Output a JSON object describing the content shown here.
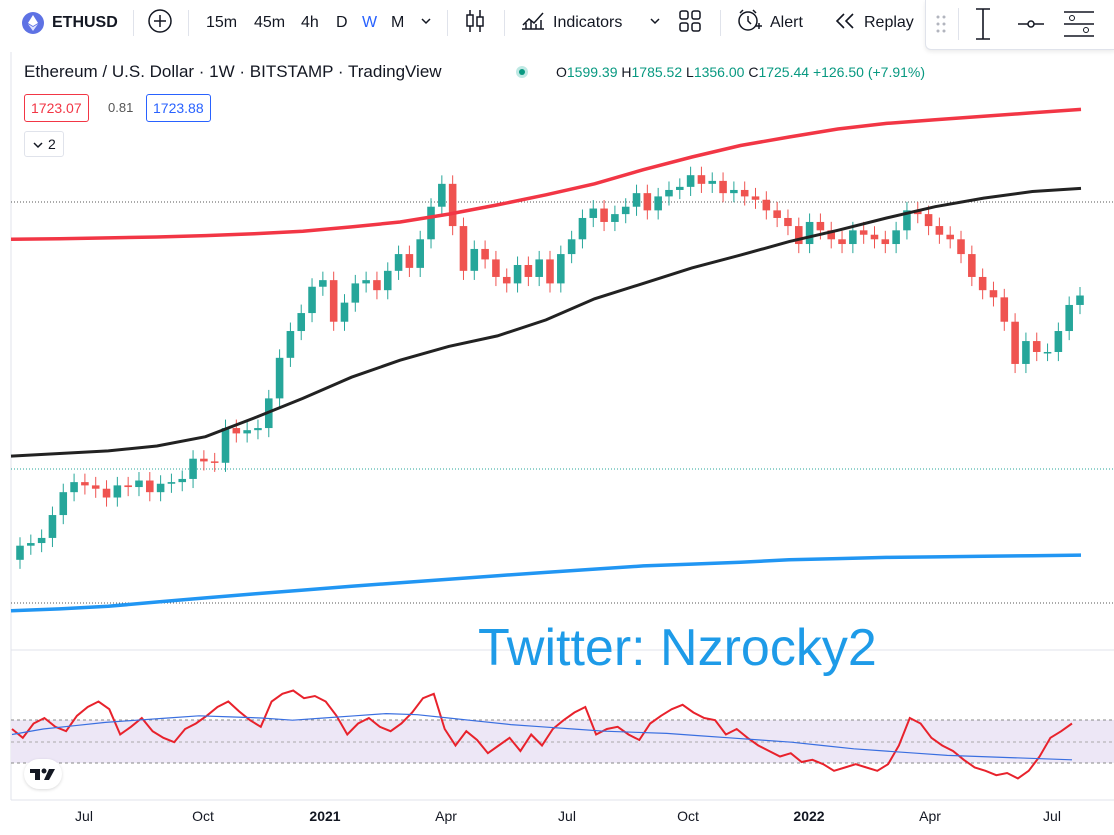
{
  "toolbar": {
    "symbol": "ETHUSD",
    "intervals": [
      "15m",
      "45m",
      "4h",
      "D",
      "W",
      "M"
    ],
    "active_interval": "W",
    "indicators_label": "Indicators",
    "alert_label": "Alert",
    "replay_label": "Replay"
  },
  "legend": {
    "title": "Ethereum / U.S. Dollar · 1W · BITSTAMP · TradingView",
    "open_prefix": "O",
    "open": "1599.39",
    "high_prefix": "H",
    "high": "1785.52",
    "low_prefix": "L",
    "low": "1356.00",
    "close_prefix": "C",
    "close": "1725.44",
    "change": "+126.50 (+7.91%)",
    "bid": "1723.07",
    "spread": "0.81",
    "ask": "1723.88",
    "indicator_count": "2"
  },
  "watermark": "Twitter: Nzrocky2",
  "x_axis": {
    "labels": [
      "Jul",
      "Oct",
      "2021",
      "Apr",
      "Jul",
      "Oct",
      "2022",
      "Apr",
      "Jul"
    ],
    "bold": [
      false,
      false,
      true,
      false,
      false,
      false,
      true,
      false,
      false
    ]
  },
  "colors": {
    "up": "#26a69a",
    "down": "#ef5350",
    "upper_band": "#f23645",
    "ma": "#222222",
    "lower_band": "#2196f3",
    "rsi": "#e8222c",
    "rsi_ma": "#3a6fe0",
    "rsi_band": "#ede7f6",
    "accent": "#2962ff",
    "price_green": "#089981"
  },
  "icons": [
    "ethereum-logo-icon",
    "add-compare-icon",
    "chevron-down-icon",
    "candles-icon",
    "indicators-icon",
    "layout-grid-icon",
    "alert-clock-icon",
    "replay-icon",
    "drag-handle-icon",
    "cursor-tool-icon",
    "horizontal-line-icon",
    "menu-lines-icon",
    "tradingview-logo-icon"
  ],
  "chart_data": [
    {
      "type": "line",
      "title": "Ethereum / U.S. Dollar · 1W · BITSTAMP · TradingView",
      "xlabel": "",
      "ylabel": "",
      "x_ticks": [
        "Jul",
        "Oct",
        "2021",
        "Apr",
        "Jul",
        "Oct",
        "2022",
        "Apr",
        "Jul"
      ],
      "candles": {
        "open": [
          210,
          235,
          240,
          250,
          300,
          360,
          390,
          380,
          370,
          345,
          380,
          375,
          395,
          360,
          385,
          390,
          400,
          470,
          460,
          455,
          600,
          575,
          590,
          600,
          760,
          1050,
          1300,
          1500,
          1850,
          1950,
          1400,
          1630,
          1900,
          1950,
          1800,
          2100,
          2400,
          2150,
          2700,
          3500,
          4200,
          3000,
          2100,
          2500,
          2300,
          2000,
          1900,
          2200,
          2000,
          2300,
          1900,
          2400,
          2700,
          3200,
          3450,
          3100,
          3300,
          3500,
          3900,
          3400,
          3800,
          4000,
          4100,
          4500,
          4200,
          4300,
          3900,
          4000,
          3800,
          3700,
          3400,
          3200,
          3000,
          2600,
          3100,
          2900,
          2700,
          2600,
          2900,
          2800,
          2700,
          2600,
          2900,
          3400,
          3300,
          3000,
          2800,
          2700,
          2400,
          2000,
          1800,
          1700,
          1400,
          1000,
          1200,
          1100,
          1100,
          1300,
          1600
        ],
        "close": [
          235,
          240,
          250,
          300,
          360,
          390,
          380,
          370,
          345,
          380,
          375,
          395,
          360,
          385,
          390,
          400,
          470,
          460,
          455,
          600,
          575,
          590,
          600,
          760,
          1050,
          1300,
          1500,
          1850,
          1950,
          1400,
          1630,
          1900,
          1950,
          1800,
          2100,
          2400,
          2150,
          2700,
          3500,
          4200,
          3000,
          2100,
          2500,
          2300,
          2000,
          1900,
          2200,
          2000,
          2300,
          1900,
          2400,
          2700,
          3200,
          3450,
          3100,
          3300,
          3500,
          3900,
          3400,
          3800,
          4000,
          4100,
          4500,
          4200,
          4300,
          3900,
          4000,
          3800,
          3700,
          3400,
          3200,
          3000,
          2600,
          3100,
          2900,
          2700,
          2600,
          2900,
          2800,
          2700,
          2600,
          2900,
          3400,
          3300,
          3000,
          2800,
          2700,
          2400,
          2000,
          1800,
          1700,
          1400,
          1000,
          1200,
          1100,
          1100,
          1300,
          1600,
          1725
        ]
      },
      "series": [
        {
          "values": [
            2700,
            2710,
            2730,
            2750,
            2780,
            2820,
            2880,
            2980,
            3100,
            3300,
            3550,
            3850,
            4200,
            4700,
            5200,
            5700,
            6100,
            6500,
            6800,
            7000,
            7200,
            7400,
            7600
          ]
        },
        {
          "values": [
            480,
            490,
            500,
            520,
            560,
            650,
            760,
            900,
            1030,
            1150,
            1250,
            1420,
            1680,
            1900,
            2150,
            2380,
            2650,
            2900,
            3200,
            3500,
            3750,
            3950,
            4050
          ]
        },
        {
          "values": [
            140,
            142,
            145,
            150,
            155,
            160,
            165,
            170,
            175,
            180,
            185,
            190,
            195,
            200,
            203,
            206,
            210,
            212,
            214,
            215,
            216,
            217,
            218
          ]
        }
      ]
    },
    {
      "type": "line",
      "title": "",
      "xlabel": "",
      "ylabel": "",
      "band": [
        30,
        70
      ],
      "series": [
        {
          "values": [
            60,
            52,
            65,
            70,
            62,
            58,
            72,
            80,
            85,
            78,
            55,
            62,
            70,
            58,
            52,
            48,
            60,
            65,
            72,
            80,
            85,
            76,
            68,
            62,
            85,
            92,
            95,
            88,
            90,
            85,
            72,
            55,
            65,
            70,
            62,
            58,
            65,
            75,
            88,
            92,
            60,
            45,
            58,
            50,
            38,
            45,
            52,
            40,
            55,
            45,
            60,
            68,
            75,
            80,
            55,
            60,
            62,
            55,
            50,
            65,
            72,
            78,
            82,
            75,
            70,
            68,
            55,
            60,
            52,
            45,
            40,
            35,
            38,
            30,
            32,
            28,
            22,
            25,
            28,
            25,
            22,
            28,
            45,
            70,
            65,
            52,
            45,
            40,
            32,
            25,
            22,
            18,
            20,
            15,
            22,
            35,
            52,
            58,
            65
          ]
        },
        {
          "values": [
            55,
            60,
            63,
            66,
            68,
            70,
            72,
            71,
            70,
            68,
            70,
            72,
            74,
            73,
            70,
            67,
            64,
            62,
            60,
            58,
            57,
            56,
            54,
            52,
            50,
            48,
            45,
            42,
            40,
            38,
            36,
            35,
            34,
            33,
            32
          ]
        }
      ]
    }
  ]
}
